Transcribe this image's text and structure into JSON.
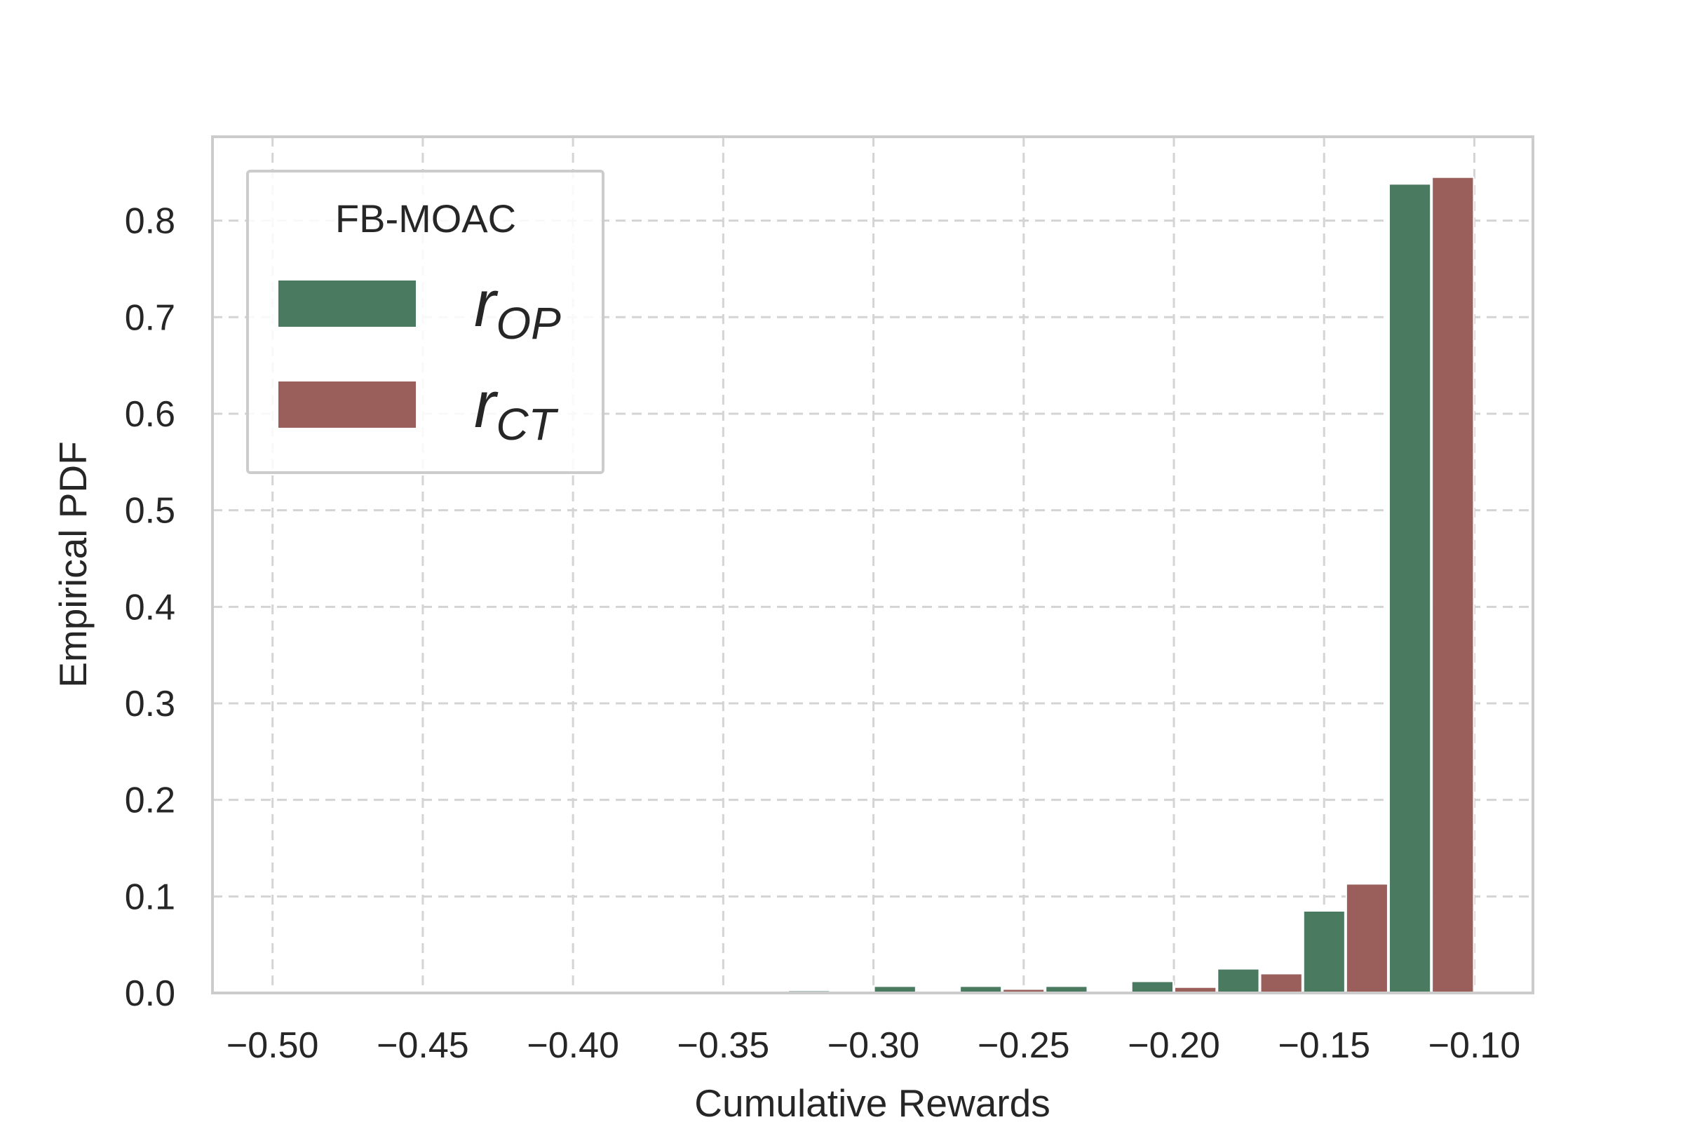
{
  "chart_data": {
    "type": "bar",
    "xlabel": "Cumulative Rewards",
    "ylabel": "Empirical PDF",
    "xlim": [
      -0.52,
      -0.0805
    ],
    "ylim": [
      0,
      0.8869
    ],
    "xticks": [
      -0.5,
      -0.45,
      -0.4,
      -0.35,
      -0.3,
      -0.25,
      -0.2,
      -0.15,
      -0.1
    ],
    "xtick_labels": [
      "−0.50",
      "−0.45",
      "−0.40",
      "−0.35",
      "−0.30",
      "−0.25",
      "−0.20",
      "−0.15",
      "−0.10"
    ],
    "yticks": [
      0,
      0.1,
      0.2,
      0.3,
      0.4,
      0.5,
      0.6,
      0.7,
      0.8
    ],
    "ytick_labels": [
      "0.0",
      "0.1",
      "0.2",
      "0.3",
      "0.4",
      "0.5",
      "0.6",
      "0.7",
      "0.8"
    ],
    "grid": true,
    "legend": {
      "title": "FB-MOAC",
      "placement": "upper-left"
    },
    "bin_edges": [
      -0.5,
      -0.4714,
      -0.4429,
      -0.4143,
      -0.3857,
      -0.3571,
      -0.3286,
      -0.3,
      -0.2714,
      -0.2429,
      -0.2143,
      -0.1857,
      -0.1571,
      -0.1286,
      -0.1
    ],
    "series": [
      {
        "name": "r_OP",
        "label_main": "r",
        "label_sub": "OP",
        "color": "#4a7a60",
        "values": [
          0,
          0,
          0,
          0,
          0,
          0,
          0.0025,
          0.007,
          0.007,
          0.007,
          0.012,
          0.025,
          0.085,
          0.838
        ]
      },
      {
        "name": "r_CT",
        "label_main": "r",
        "label_sub": "CT",
        "color": "#9a5e5b",
        "values": [
          0,
          0,
          0,
          0,
          0,
          0,
          0,
          0,
          0.004,
          0,
          0.006,
          0.02,
          0.113,
          0.845
        ]
      }
    ]
  }
}
